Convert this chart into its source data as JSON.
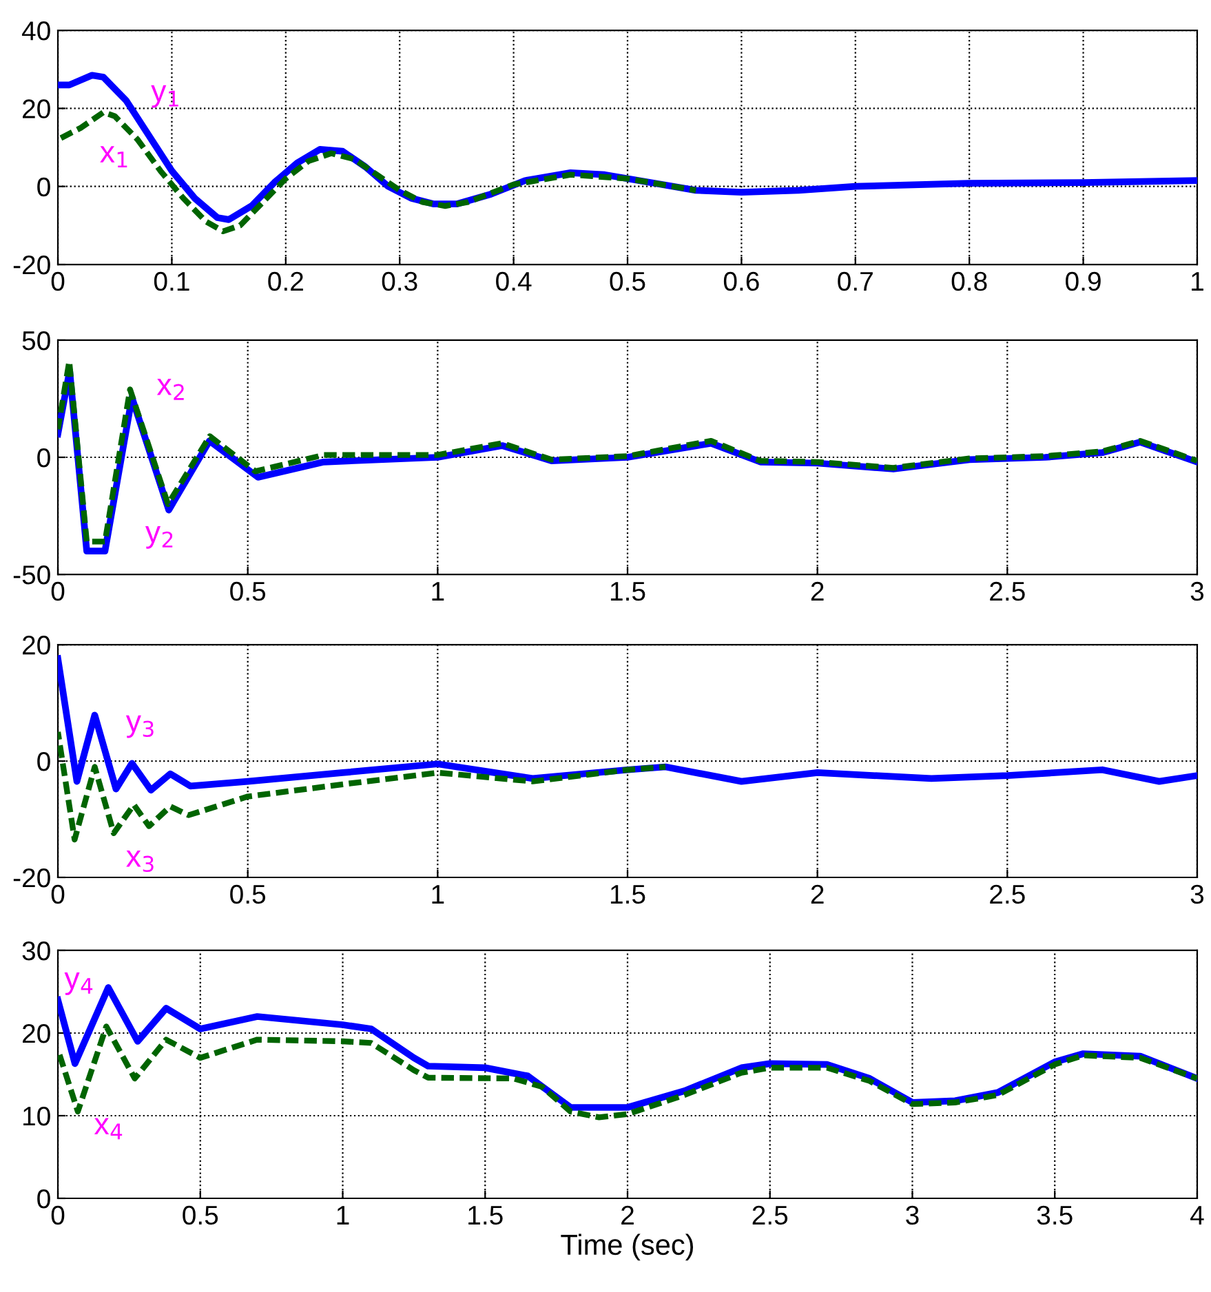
{
  "chart_data": [
    {
      "type": "line",
      "xlim": [
        0,
        1
      ],
      "ylim": [
        -20,
        40
      ],
      "xticks": [
        0,
        0.1,
        0.2,
        0.3,
        0.4,
        0.5,
        0.6,
        0.7,
        0.8,
        0.9,
        1
      ],
      "yticks": [
        -20,
        0,
        20,
        40
      ],
      "grid": true,
      "series": [
        {
          "color": "#006400",
          "line_style": "dashed",
          "x": [
            0,
            0.02,
            0.04,
            0.05,
            0.07,
            0.09,
            0.11,
            0.13,
            0.145,
            0.16,
            0.18,
            0.2,
            0.22,
            0.24,
            0.26,
            0.28,
            0.3,
            0.32,
            0.34,
            0.36,
            0.4,
            0.45,
            0.5,
            0.56
          ],
          "values": [
            12,
            15,
            19,
            18,
            12,
            4,
            -3,
            -9,
            -11.5,
            -10,
            -4,
            2,
            6.5,
            8.5,
            7,
            3,
            -1,
            -4,
            -5,
            -4,
            0.5,
            3,
            2,
            -1
          ]
        },
        {
          "color": "#0000ff",
          "line_style": "solid",
          "x": [
            0,
            0.01,
            0.03,
            0.04,
            0.06,
            0.08,
            0.1,
            0.12,
            0.14,
            0.15,
            0.17,
            0.19,
            0.21,
            0.23,
            0.25,
            0.27,
            0.29,
            0.31,
            0.33,
            0.35,
            0.38,
            0.41,
            0.45,
            0.48,
            0.52,
            0.56,
            0.6,
            0.65,
            0.7,
            0.8,
            0.9,
            1
          ],
          "values": [
            26,
            26,
            28.5,
            28,
            22,
            13,
            4,
            -3,
            -8,
            -8.5,
            -5,
            1,
            6,
            9.5,
            9,
            5,
            0,
            -3,
            -4.5,
            -4.5,
            -2,
            1.5,
            3.5,
            3,
            1,
            -1,
            -1.5,
            -1,
            0,
            0.8,
            1,
            1.5
          ]
        }
      ],
      "annotations": [
        "y$_{1}$",
        "x$_{1}$"
      ]
    },
    {
      "type": "line",
      "xlim": [
        0,
        3
      ],
      "ylim": [
        -50,
        50
      ],
      "xticks": [
        0,
        0.5,
        1,
        1.5,
        2,
        2.5,
        3
      ],
      "yticks": [
        -50,
        0,
        50
      ],
      "grid": true,
      "series": [
        {
          "color": "#006400",
          "line_style": "dashed",
          "x": [
            0,
            0.03,
            0.076,
            0.1,
            0.124,
            0.19,
            0.29,
            0.4,
            0.52,
            0.7,
            1.0,
            1.17,
            1.3,
            1.5,
            1.72,
            1.85,
            2.0,
            2.2,
            2.4,
            2.6,
            2.75,
            2.85,
            3.0
          ],
          "values": [
            12,
            41,
            -36,
            -36,
            -36,
            29,
            -20,
            9,
            -6,
            1,
            1,
            6,
            -1,
            0.5,
            7,
            -1.5,
            -2,
            -4.5,
            -0.5,
            0.5,
            2.5,
            7,
            -1.5
          ]
        },
        {
          "color": "#0000ff",
          "line_style": "solid",
          "x": [
            0,
            0.031,
            0.076,
            0.1,
            0.124,
            0.195,
            0.292,
            0.399,
            0.527,
            0.7,
            1.0,
            1.17,
            1.3,
            1.5,
            1.72,
            1.85,
            2.0,
            2.2,
            2.4,
            2.6,
            2.75,
            2.85,
            3.0
          ],
          "values": [
            10,
            37,
            -40,
            -40,
            -40,
            25.5,
            -22.5,
            7,
            -8.5,
            -2,
            0,
            5,
            -1.5,
            0,
            6,
            -2,
            -2.5,
            -5,
            -1,
            0,
            2,
            6.5,
            -2
          ]
        }
      ],
      "annotations": [
        "x$_{2}$",
        "y$_{2}$"
      ]
    },
    {
      "type": "line",
      "xlim": [
        0,
        3
      ],
      "ylim": [
        -20,
        20
      ],
      "xticks": [
        0,
        0.5,
        1,
        1.5,
        2,
        2.5,
        3
      ],
      "yticks": [
        -20,
        0,
        20
      ],
      "grid": true,
      "series": [
        {
          "color": "#006400",
          "line_style": "dashed",
          "x": [
            0,
            0.044,
            0.097,
            0.147,
            0.2,
            0.24,
            0.296,
            0.344,
            0.5,
            0.75,
            1.0,
            1.25,
            1.5,
            1.6
          ],
          "values": [
            5,
            -13.5,
            -1,
            -12.4,
            -7.5,
            -11.2,
            -7.8,
            -9.3,
            -6.1,
            -4,
            -2,
            -3.5,
            -1.5,
            -1
          ]
        },
        {
          "color": "#0000ff",
          "line_style": "solid",
          "x": [
            0,
            0.05,
            0.097,
            0.153,
            0.195,
            0.245,
            0.296,
            0.349,
            0.5,
            0.75,
            1.0,
            1.25,
            1.5,
            1.6,
            1.8,
            2.0,
            2.3,
            2.5,
            2.75,
            2.9,
            3.0
          ],
          "values": [
            17.6,
            -3.5,
            7.9,
            -4.8,
            -0.4,
            -5,
            -2.2,
            -4.3,
            -3.5,
            -2,
            -0.5,
            -3,
            -1.5,
            -1,
            -3.5,
            -2,
            -3,
            -2.5,
            -1.5,
            -3.5,
            -2.5
          ]
        }
      ],
      "annotations": [
        "y$_{3}$",
        "x$_{3}$"
      ]
    },
    {
      "type": "line",
      "xlim": [
        0,
        4
      ],
      "ylim": [
        0,
        30
      ],
      "xticks": [
        0,
        0.5,
        1,
        1.5,
        2,
        2.5,
        3,
        3.5,
        4
      ],
      "yticks": [
        0,
        10,
        20,
        30
      ],
      "grid": true,
      "xlabel": "Time (sec)",
      "series": [
        {
          "color": "#006400",
          "line_style": "dashed",
          "x": [
            0,
            0.07,
            0.17,
            0.27,
            0.38,
            0.5,
            0.7,
            1.0,
            1.1,
            1.25,
            1.3,
            1.6,
            1.7,
            1.8,
            1.9,
            2.0,
            2.2,
            2.4,
            2.5,
            2.7,
            2.85,
            3.0,
            3.15,
            3.3,
            3.5,
            3.6,
            3.8,
            4.0
          ],
          "values": [
            18,
            10.5,
            20.8,
            14.5,
            19.2,
            17,
            19.2,
            19,
            18.8,
            15.5,
            14.6,
            14.5,
            13.5,
            10.5,
            9.8,
            10.2,
            12.5,
            15.2,
            15.8,
            15.8,
            14.2,
            11.4,
            11.6,
            12.5,
            16.2,
            17.3,
            17,
            14.5
          ]
        },
        {
          "color": "#0000ff",
          "line_style": "solid",
          "x": [
            0,
            0.06,
            0.177,
            0.28,
            0.38,
            0.5,
            0.7,
            1.0,
            1.1,
            1.25,
            1.3,
            1.5,
            1.65,
            1.8,
            2.0,
            2.2,
            2.4,
            2.5,
            2.7,
            2.85,
            3.0,
            3.15,
            3.3,
            3.5,
            3.6,
            3.8,
            4.0
          ],
          "values": [
            24,
            16.3,
            25.5,
            19,
            23,
            20.5,
            22,
            21,
            20.5,
            17,
            16,
            15.8,
            14.8,
            11,
            11,
            13,
            15.8,
            16.3,
            16.2,
            14.5,
            11.6,
            11.8,
            12.8,
            16.5,
            17.5,
            17.2,
            14.5
          ]
        }
      ],
      "annotations": [
        "y$_{4}$",
        "x$_{4}$"
      ]
    }
  ]
}
